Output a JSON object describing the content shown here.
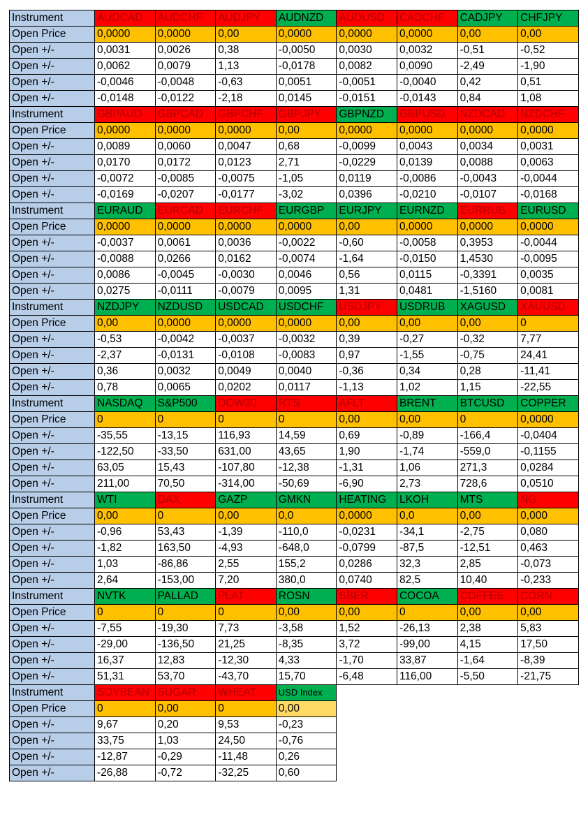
{
  "colors": {
    "red": "#ff0000",
    "green": "#00b050",
    "open_price": "#ffc000",
    "label": "#b7cde8"
  },
  "labels": {
    "instrument": "Instrument",
    "open_price": "Open Price",
    "open_delta": "Open +/-"
  },
  "blocks": [
    {
      "instruments": [
        {
          "name": "AUDCAD",
          "color": "red"
        },
        {
          "name": "AUDCHF",
          "color": "red"
        },
        {
          "name": "AUDJPY",
          "color": "red"
        },
        {
          "name": "AUDNZD",
          "color": "green"
        },
        {
          "name": "AUDUSD",
          "color": "red"
        },
        {
          "name": "CADCHF",
          "color": "red"
        },
        {
          "name": "CADJPY",
          "color": "green"
        },
        {
          "name": "CHFJPY",
          "color": "green"
        }
      ],
      "open_price": [
        "0,0000",
        "0,0000",
        "0,00",
        "0,0000",
        "0,0000",
        "0,0000",
        "0,00",
        "0,00"
      ],
      "rows": [
        [
          "0,0031",
          "0,0026",
          "0,38",
          "-0,0050",
          "0,0030",
          "0,0032",
          "-0,51",
          "-0,52"
        ],
        [
          "0,0062",
          "0,0079",
          "1,13",
          "-0,0178",
          "0,0082",
          "0,0090",
          "-2,49",
          "-1,90"
        ],
        [
          "-0,0046",
          "-0,0048",
          "-0,63",
          "0,0051",
          "-0,0051",
          "-0,0040",
          "0,42",
          "0,51"
        ],
        [
          "-0,0148",
          "-0,0122",
          "-2,18",
          "0,0145",
          "-0,0151",
          "-0,0143",
          "0,84",
          "1,08"
        ]
      ]
    },
    {
      "instruments": [
        {
          "name": "GBPAUD",
          "color": "red"
        },
        {
          "name": "GBPCAD",
          "color": "red"
        },
        {
          "name": "GBPCHF",
          "color": "red"
        },
        {
          "name": "GBPJPY",
          "color": "red"
        },
        {
          "name": "GBPNZD",
          "color": "green"
        },
        {
          "name": "GBPUSD",
          "color": "red"
        },
        {
          "name": "NZDCAD",
          "color": "red"
        },
        {
          "name": "NZDCHF",
          "color": "red"
        }
      ],
      "open_price": [
        "0,0000",
        "0,0000",
        "0,0000",
        "0,00",
        "0,0000",
        "0,0000",
        "0,0000",
        "0,0000"
      ],
      "rows": [
        [
          "0,0089",
          "0,0060",
          "0,0047",
          "0,68",
          "-0,0099",
          "0,0043",
          "0,0034",
          "0,0031"
        ],
        [
          "0,0170",
          "0,0172",
          "0,0123",
          "2,71",
          "-0,0229",
          "0,0139",
          "0,0088",
          "0,0063"
        ],
        [
          "-0,0072",
          "-0,0085",
          "-0,0075",
          "-1,05",
          "0,0119",
          "-0,0086",
          "-0,0043",
          "-0,0044"
        ],
        [
          "-0,0169",
          "-0,0207",
          "-0,0177",
          "-3,02",
          "0,0396",
          "-0,0210",
          "-0,0107",
          "-0,0168"
        ]
      ]
    },
    {
      "instruments": [
        {
          "name": "EURAUD",
          "color": "green"
        },
        {
          "name": "EURCAD",
          "color": "red"
        },
        {
          "name": "EURCHF",
          "color": "red"
        },
        {
          "name": "EURGBP",
          "color": "green"
        },
        {
          "name": "EURJPY",
          "color": "green"
        },
        {
          "name": "EURNZD",
          "color": "green"
        },
        {
          "name": "EURRUB",
          "color": "red"
        },
        {
          "name": "EURUSD",
          "color": "green"
        }
      ],
      "open_price": [
        "0,0000",
        "0,0000",
        "0,0000",
        "0,0000",
        "0,00",
        "0,0000",
        "0,0000",
        "0,0000"
      ],
      "rows": [
        [
          "-0,0037",
          "0,0061",
          "0,0036",
          "-0,0022",
          "-0,60",
          "-0,0058",
          "0,3953",
          "-0,0044"
        ],
        [
          "-0,0088",
          "0,0266",
          "0,0162",
          "-0,0074",
          "-1,64",
          "-0,0150",
          "1,4530",
          "-0,0095"
        ],
        [
          "0,0086",
          "-0,0045",
          "-0,0030",
          "0,0046",
          "0,56",
          "0,0115",
          "-0,3391",
          "0,0035"
        ],
        [
          "0,0275",
          "-0,0111",
          "-0,0079",
          "0,0095",
          "1,31",
          "0,0481",
          "-1,5160",
          "0,0081"
        ]
      ]
    },
    {
      "instruments": [
        {
          "name": "NZDJPY",
          "color": "green"
        },
        {
          "name": "NZDUSD",
          "color": "green"
        },
        {
          "name": "USDCAD",
          "color": "green"
        },
        {
          "name": "USDCHF",
          "color": "green"
        },
        {
          "name": "USDJPY",
          "color": "red"
        },
        {
          "name": "USDRUB",
          "color": "green"
        },
        {
          "name": "XAGUSD",
          "color": "green"
        },
        {
          "name": "XAUUSD",
          "color": "red"
        }
      ],
      "open_price": [
        "0,00",
        "0,0000",
        "0,0000",
        "0,0000",
        "0,00",
        "0,00",
        "0,00",
        "0"
      ],
      "rows": [
        [
          "-0,53",
          "-0,0042",
          "-0,0037",
          "-0,0032",
          "0,39",
          "-0,27",
          "-0,32",
          "7,77"
        ],
        [
          "-2,37",
          "-0,0131",
          "-0,0108",
          "-0,0083",
          "0,97",
          "-1,55",
          "-0,75",
          "24,41"
        ],
        [
          "0,36",
          "0,0032",
          "0,0049",
          "0,0040",
          "-0,36",
          "0,34",
          "0,28",
          "-11,41"
        ],
        [
          "0,78",
          "0,0065",
          "0,0202",
          "0,0117",
          "-1,13",
          "1,02",
          "1,15",
          "-22,55"
        ]
      ]
    },
    {
      "instruments": [
        {
          "name": "NASDAQ",
          "color": "green"
        },
        {
          "name": "S&P500",
          "color": "green"
        },
        {
          "name": "DOW30",
          "color": "red"
        },
        {
          "name": "RTS",
          "color": "red"
        },
        {
          "name": "AFLT",
          "color": "red"
        },
        {
          "name": "BRENT",
          "color": "green"
        },
        {
          "name": "BTCUSD",
          "color": "green"
        },
        {
          "name": "COPPER",
          "color": "green"
        }
      ],
      "open_price": [
        "0",
        "0",
        "0",
        "0",
        "0,00",
        "0,00",
        "0",
        "0,0000"
      ],
      "rows": [
        [
          "-35,55",
          "-13,15",
          "116,93",
          "14,59",
          "0,69",
          "-0,89",
          "-166,4",
          "-0,0404"
        ],
        [
          "-122,50",
          "-33,50",
          "631,00",
          "43,65",
          "1,90",
          "-1,74",
          "-559,0",
          "-0,1155"
        ],
        [
          "63,05",
          "15,43",
          "-107,80",
          "-12,38",
          "-1,31",
          "1,06",
          "271,3",
          "0,0284"
        ],
        [
          "211,00",
          "70,50",
          "-314,00",
          "-50,69",
          "-6,90",
          "2,73",
          "728,6",
          "0,0510"
        ]
      ]
    },
    {
      "instruments": [
        {
          "name": "WTI",
          "color": "green"
        },
        {
          "name": "DAX",
          "color": "red"
        },
        {
          "name": "GAZP",
          "color": "green"
        },
        {
          "name": "GMKN",
          "color": "green"
        },
        {
          "name": "HEATING",
          "color": "green"
        },
        {
          "name": "LKOH",
          "color": "green"
        },
        {
          "name": "MTS",
          "color": "green"
        },
        {
          "name": "NG",
          "color": "red"
        }
      ],
      "open_price": [
        "0,00",
        "0",
        "0,00",
        "0,0",
        "0,0000",
        "0,0",
        "0,00",
        "0,000"
      ],
      "rows": [
        [
          "-0,96",
          "53,43",
          "-1,39",
          "-110,0",
          "-0,0231",
          "-34,1",
          "-2,75",
          "0,080"
        ],
        [
          "-1,82",
          "163,50",
          "-4,93",
          "-648,0",
          "-0,0799",
          "-87,5",
          "-12,51",
          "0,463"
        ],
        [
          "1,03",
          "-86,86",
          "2,55",
          "155,2",
          "0,0286",
          "32,3",
          "2,85",
          "-0,073"
        ],
        [
          "2,64",
          "-153,00",
          "7,20",
          "380,0",
          "0,0740",
          "82,5",
          "10,40",
          "-0,233"
        ]
      ]
    },
    {
      "instruments": [
        {
          "name": "NVTK",
          "color": "green"
        },
        {
          "name": "PALLAD",
          "color": "green"
        },
        {
          "name": "PLAT",
          "color": "red"
        },
        {
          "name": "ROSN",
          "color": "green"
        },
        {
          "name": "SBER",
          "color": "red"
        },
        {
          "name": "COCOA",
          "color": "green"
        },
        {
          "name": "COFFEE",
          "color": "red"
        },
        {
          "name": "CORN",
          "color": "red"
        }
      ],
      "open_price": [
        "0",
        "0",
        "0",
        "0,00",
        "0,00",
        "0",
        "0,00",
        "0,00"
      ],
      "rows": [
        [
          "-7,55",
          "-19,30",
          "7,73",
          "-3,58",
          "1,52",
          "-26,13",
          "2,38",
          "5,83"
        ],
        [
          "-29,00",
          "-136,50",
          "21,25",
          "-8,35",
          "3,72",
          "-99,00",
          "4,15",
          "17,50"
        ],
        [
          "16,37",
          "12,83",
          "-12,30",
          "4,33",
          "-1,70",
          "33,87",
          "-1,64",
          "-8,39"
        ],
        [
          "51,31",
          "53,70",
          "-43,70",
          "15,70",
          "-6,48",
          "116,00",
          "-5,50",
          "-21,75"
        ]
      ]
    },
    {
      "instruments": [
        {
          "name": "SOYBEAN",
          "color": "red"
        },
        {
          "name": "SUGAR",
          "color": "red"
        },
        {
          "name": "WHEAT",
          "color": "red"
        },
        {
          "name": "USD Index",
          "color": "green"
        }
      ],
      "open_price": [
        "0",
        "0,00",
        "0",
        "0,00"
      ],
      "rows": [
        [
          "9,67",
          "0,20",
          "9,53",
          "-0,23"
        ],
        [
          "33,75",
          "1,03",
          "24,50",
          "-0,76"
        ],
        [
          "-12,87",
          "-0,29",
          "-11,48",
          "0,26"
        ],
        [
          "-26,88",
          "-0,72",
          "-32,25",
          "0,60"
        ]
      ]
    }
  ]
}
